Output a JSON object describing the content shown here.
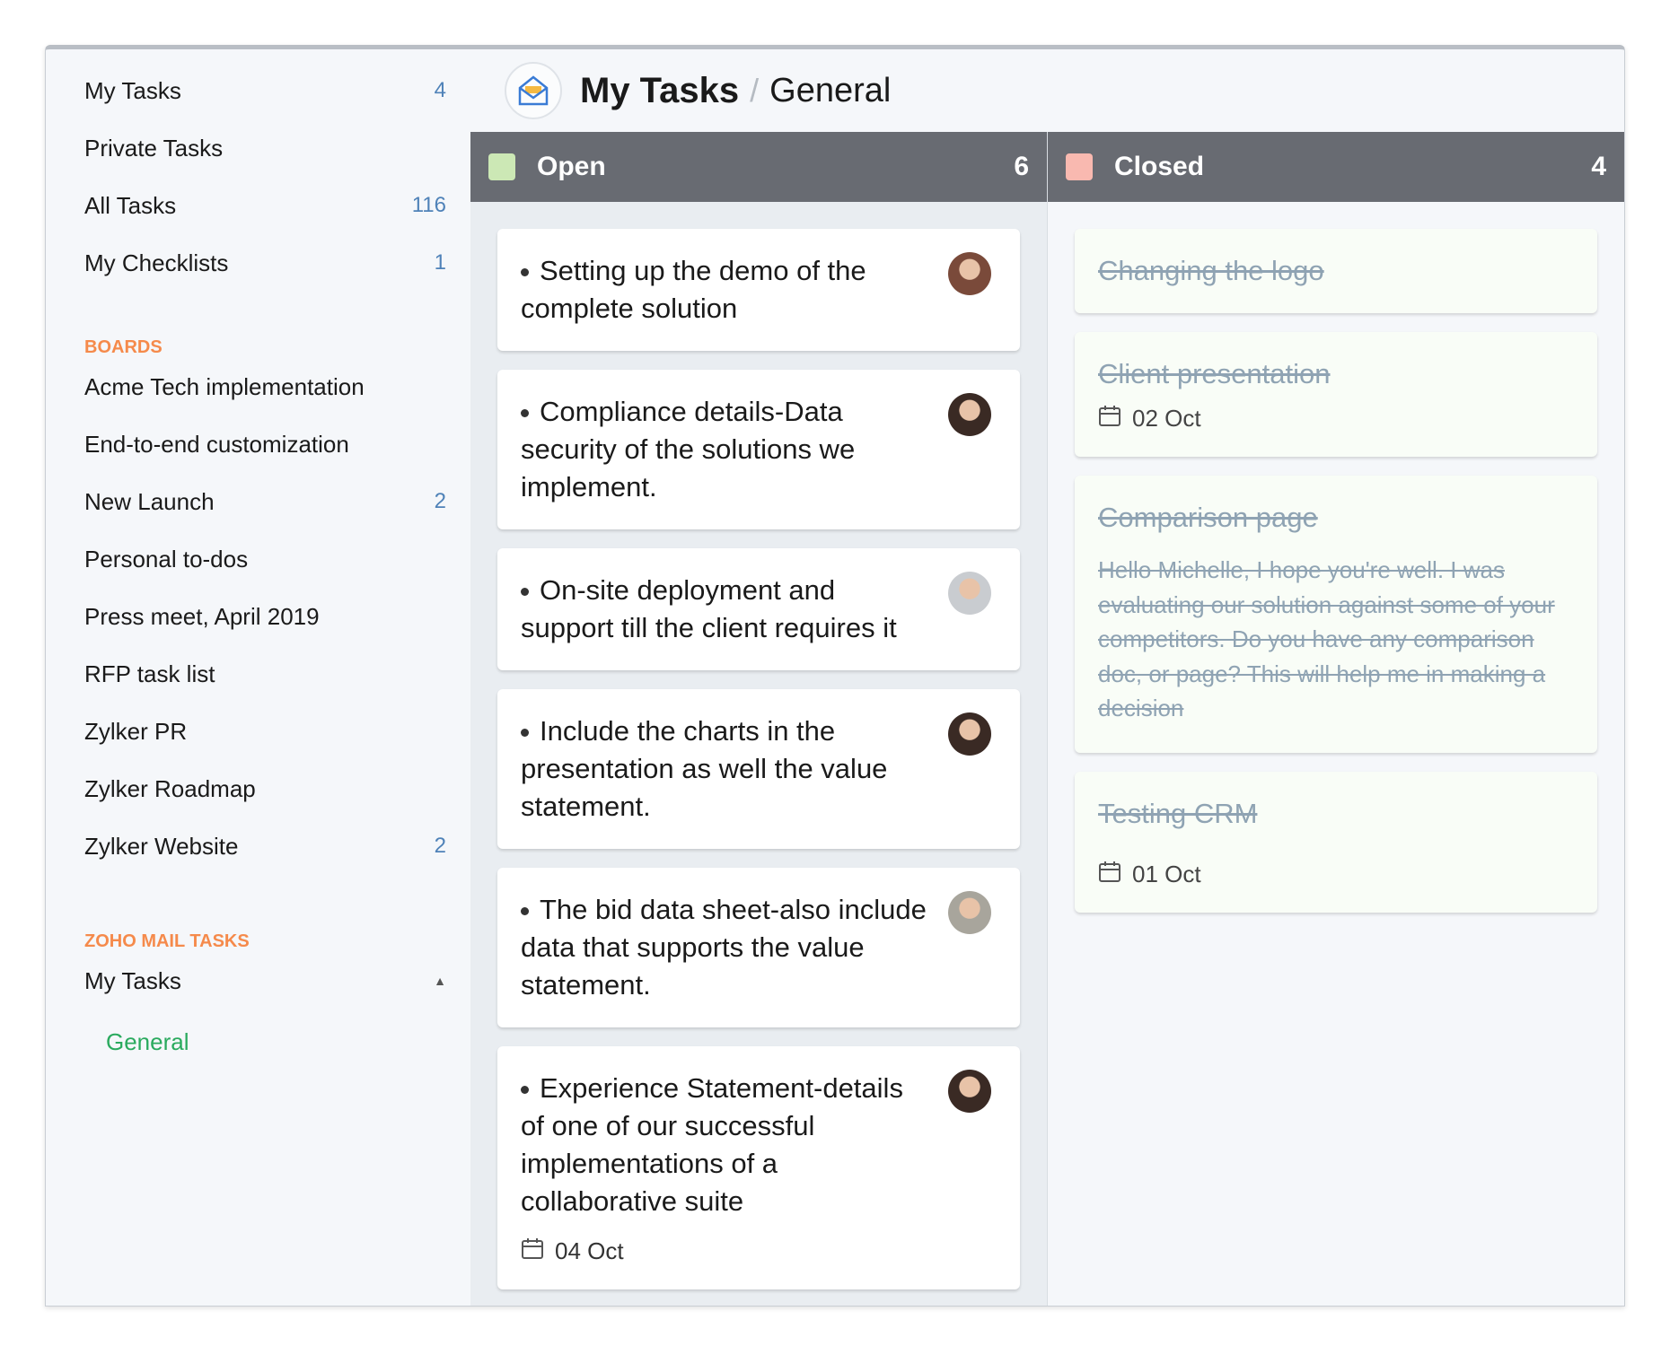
{
  "sidebar": {
    "items": [
      {
        "label": "My Tasks",
        "count": "4"
      },
      {
        "label": "Private Tasks",
        "count": ""
      },
      {
        "label": "All Tasks",
        "count": "116"
      },
      {
        "label": "My Checklists",
        "count": "1"
      }
    ],
    "boards_heading": "BOARDS",
    "boards": [
      {
        "label": "Acme Tech implementation",
        "count": ""
      },
      {
        "label": "End-to-end customization",
        "count": ""
      },
      {
        "label": "New Launch",
        "count": "2"
      },
      {
        "label": "Personal to-dos",
        "count": ""
      },
      {
        "label": "Press meet, April 2019",
        "count": ""
      },
      {
        "label": "RFP task list",
        "count": ""
      },
      {
        "label": "Zylker PR",
        "count": ""
      },
      {
        "label": "Zylker Roadmap",
        "count": ""
      },
      {
        "label": "Zylker Website",
        "count": "2"
      }
    ],
    "mail_heading": "ZOHO MAIL TASKS",
    "mail_item": "My Tasks",
    "mail_sub": "General"
  },
  "header": {
    "title": "My Tasks",
    "separator": "/",
    "subtitle": "General",
    "icon": "mail-tasks-icon"
  },
  "columns": {
    "open": {
      "label": "Open",
      "count": "6",
      "color": "#cce8b5"
    },
    "closed": {
      "label": "Closed",
      "count": "4",
      "color": "#f9b9b0"
    }
  },
  "open_cards": [
    {
      "text": "Setting up the demo of the complete solution",
      "avatar": "#7a4a3a"
    },
    {
      "text": "Compliance details-Data security of the solutions we implement.",
      "avatar": "#3a2a24"
    },
    {
      "text": "On-site deployment and support till the client requires it",
      "avatar": "#c9ccd0"
    },
    {
      "text": "Include the charts in the presentation as well the value statement.",
      "avatar": "#3a2a24"
    },
    {
      "text": "The bid data sheet-also include data that supports the value statement.",
      "avatar": "#a8a59c"
    },
    {
      "text": "Experience Statement-details of one of our successful implementations of a collaborative suite",
      "avatar": "#3a2a24",
      "due": "04 Oct"
    }
  ],
  "closed_cards": [
    {
      "title": "Changing the logo"
    },
    {
      "title": "Client presentation",
      "due": "02 Oct"
    },
    {
      "title": "Comparison page",
      "desc": "Hello Michelle, I hope you're well. I was evaluating our solution against some of your competitors. Do you have any comparison doc, or page? This will help me in making a decision"
    },
    {
      "title": "Testing CRM",
      "due": "01 Oct"
    }
  ]
}
